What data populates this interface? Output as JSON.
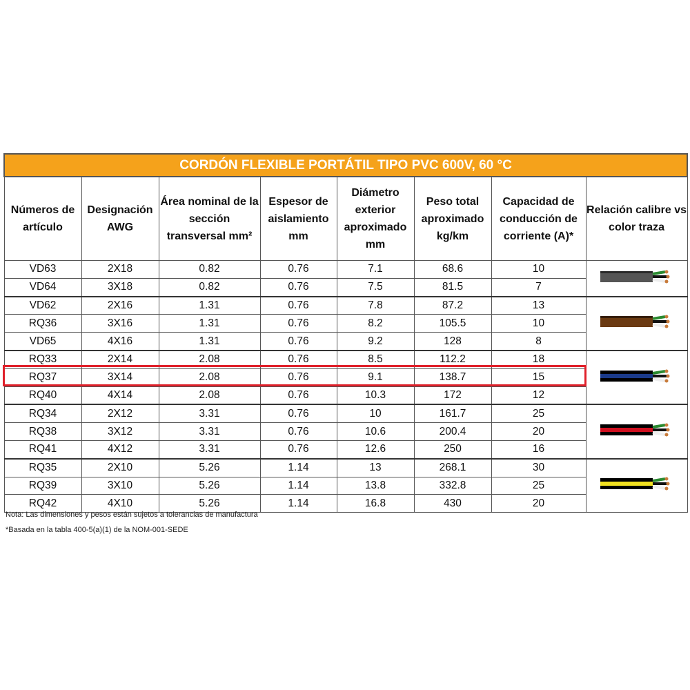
{
  "table": {
    "title": "CORDÓN FLEXIBLE PORTÁTIL TIPO PVC 600V, 60 °C",
    "headers": [
      "Números de artículo",
      "Designación AWG",
      "Área nominal de la sección transversal mm²",
      "Espesor de aislamiento mm",
      "Diámetro exterior aproximado mm",
      "Peso total aproximado kg/km",
      "Capacidad de conducción de corriente (A)*",
      "Relación calibre vs color traza"
    ],
    "rows": [
      [
        "VD63",
        "2X18",
        "0.82",
        "0.76",
        "7.1",
        "68.6",
        "10"
      ],
      [
        "VD64",
        "3X18",
        "0.82",
        "0.76",
        "7.5",
        "81.5",
        "7"
      ],
      [
        "VD62",
        "2X16",
        "1.31",
        "0.76",
        "7.8",
        "87.2",
        "13"
      ],
      [
        "RQ36",
        "3X16",
        "1.31",
        "0.76",
        "8.2",
        "105.5",
        "10"
      ],
      [
        "VD65",
        "4X16",
        "1.31",
        "0.76",
        "9.2",
        "128",
        "8"
      ],
      [
        "RQ33",
        "2X14",
        "2.08",
        "0.76",
        "8.5",
        "112.2",
        "18"
      ],
      [
        "RQ37",
        "3X14",
        "2.08",
        "0.76",
        "9.1",
        "138.7",
        "15"
      ],
      [
        "RQ40",
        "4X14",
        "2.08",
        "0.76",
        "10.3",
        "172",
        "12"
      ],
      [
        "RQ34",
        "2X12",
        "3.31",
        "0.76",
        "10",
        "161.7",
        "25"
      ],
      [
        "RQ38",
        "3X12",
        "3.31",
        "0.76",
        "10.6",
        "200.4",
        "20"
      ],
      [
        "RQ41",
        "4X12",
        "3.31",
        "0.76",
        "12.6",
        "250",
        "16"
      ],
      [
        "RQ35",
        "2X10",
        "5.26",
        "1.14",
        "13",
        "268.1",
        "30"
      ],
      [
        "RQ39",
        "3X10",
        "5.26",
        "1.14",
        "13.8",
        "332.8",
        "25"
      ],
      [
        "RQ42",
        "4X10",
        "5.26",
        "1.14",
        "16.8",
        "430",
        "20"
      ]
    ],
    "notes": [
      "Nota: Las dimensiones y pesos están sujetos a tolerancias de manufactura",
      "*Basada en la tabla 400-5(a)(1) de la NOM-001-SEDE"
    ]
  }
}
